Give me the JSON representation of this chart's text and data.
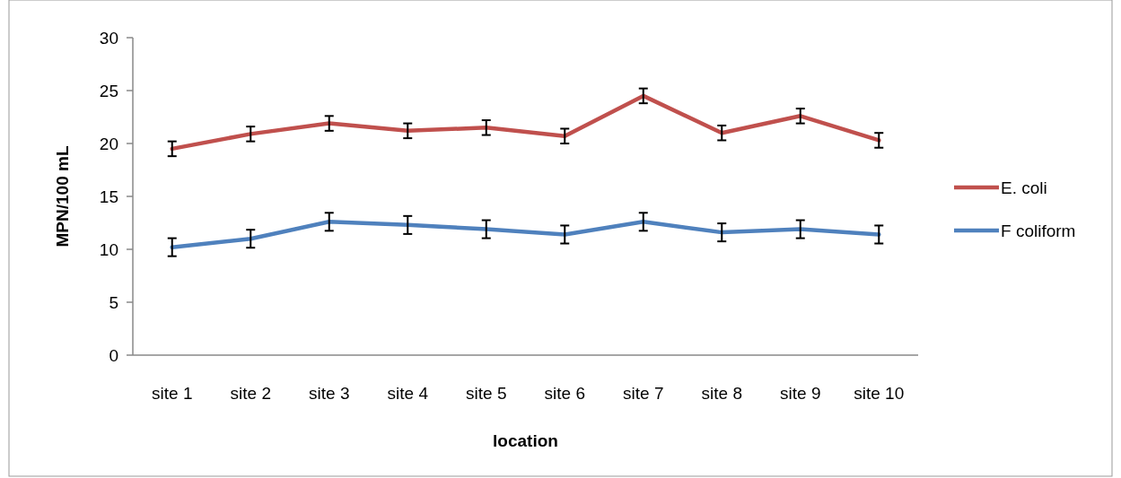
{
  "chart_data": {
    "type": "line",
    "xlabel": "location",
    "ylabel": "MPN/100 mL",
    "categories": [
      "site 1",
      "site 2",
      "site 3",
      "site 4",
      "site 5",
      "site 6",
      "site 7",
      "site 8",
      "site 9",
      "site 10"
    ],
    "series": [
      {
        "name": "E. coli",
        "color": "#c0504d",
        "values": [
          19.5,
          20.9,
          21.9,
          21.2,
          21.5,
          20.7,
          24.5,
          21.0,
          22.6,
          20.3
        ],
        "errors": [
          0.7,
          0.7,
          0.7,
          0.7,
          0.7,
          0.7,
          0.7,
          0.7,
          0.7,
          0.7
        ]
      },
      {
        "name": "F coliform",
        "color": "#4f81bd",
        "values": [
          10.2,
          11.0,
          12.6,
          12.3,
          11.9,
          11.4,
          12.6,
          11.6,
          11.9,
          11.4
        ],
        "errors": [
          0.85,
          0.85,
          0.85,
          0.85,
          0.85,
          0.85,
          0.85,
          0.85,
          0.85,
          0.85
        ]
      }
    ],
    "ylim": [
      0,
      30
    ],
    "yticks": [
      0,
      5,
      10,
      15,
      20,
      25,
      30
    ],
    "grid": false,
    "legend": "right",
    "marker": "none",
    "line_style": "solid"
  }
}
